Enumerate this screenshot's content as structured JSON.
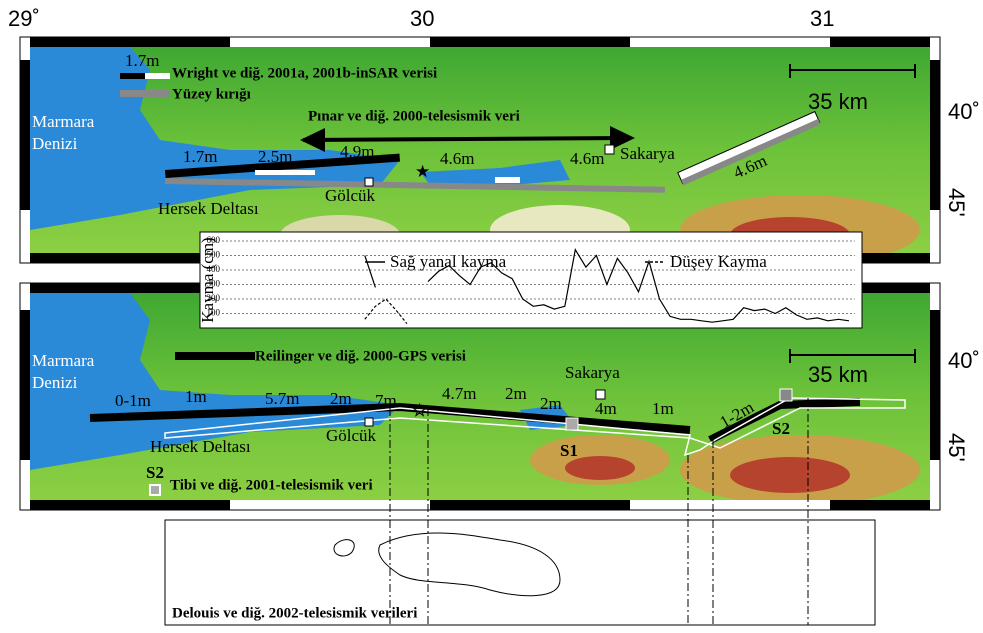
{
  "longitude_labels": [
    "29˚",
    "30",
    "31"
  ],
  "top_map": {
    "latitude_label": [
      "40˚",
      "45'"
    ],
    "legend_slip": "1.7m",
    "legend": [
      "Wright ve diğ. 2001a, 2001b-inSAR verisi",
      "Yüzey kırığı"
    ],
    "arrow_label": "Pınar ve diğ. 2000-telesismik veri",
    "sea": [
      "Marmara",
      "Denizi"
    ],
    "scale": "35 km",
    "places": [
      "Sakarya",
      "Gölcük",
      "Hersek Deltası"
    ],
    "slips": [
      "1.7m",
      "2.5m",
      "4.9m",
      "4.6m",
      "4.6m",
      "4.6m"
    ]
  },
  "slip_profile": {
    "y_axis_label": "Kayma (cm)",
    "ylim": [
      0,
      600
    ],
    "yticks": [
      100,
      200,
      300,
      400,
      500,
      600
    ],
    "series": [
      {
        "name": "Sağ yanal kayma",
        "values": [
          null,
          null,
          null,
          null,
          null,
          null,
          null,
          null,
          null,
          null,
          null,
          null,
          null,
          500,
          280,
          null,
          null,
          null,
          null,
          320,
          390,
          430,
          360,
          300,
          420,
          450,
          380,
          340,
          200,
          150,
          160,
          130,
          150,
          540,
          420,
          500,
          300,
          480,
          380,
          250,
          460,
          200,
          80,
          60,
          60,
          50,
          40,
          50,
          60,
          140,
          120,
          130,
          100,
          140,
          90,
          60,
          70,
          50,
          60,
          50
        ]
      },
      {
        "name": "Düşey Kayma",
        "values": [
          null,
          null,
          null,
          null,
          null,
          null,
          null,
          null,
          null,
          null,
          null,
          null,
          null,
          60,
          150,
          200,
          120,
          30,
          null,
          null,
          null,
          null,
          null,
          null,
          null,
          null,
          null,
          null,
          null,
          null,
          null,
          null,
          null,
          null,
          null,
          null,
          null,
          null,
          null,
          null,
          null,
          null,
          null,
          null,
          null,
          null,
          null,
          null,
          null,
          null,
          null,
          null,
          null,
          null,
          null,
          null,
          null,
          null,
          null,
          null
        ]
      }
    ]
  },
  "bottom_map": {
    "latitude_label": [
      "40˚",
      "45'"
    ],
    "legend": "Reilinger ve diğ. 2000-GPS verisi",
    "sea": [
      "Marmara",
      "Denizi"
    ],
    "scale": "35 km",
    "places": [
      "Sakarya",
      "Gölcük",
      "Hersek Deltası"
    ],
    "slips": [
      "0-1m",
      "1m",
      "5.7m",
      "2m",
      "7m",
      "4.7m",
      "2m",
      "2m",
      "4m",
      "1m",
      "1-2m"
    ],
    "stations": [
      "S1",
      "S2"
    ],
    "tibi_marker": "S2",
    "tibi_legend": "Tibi ve diğ. 2001-telesismik veri"
  },
  "delouis_box": {
    "label": "Delouis ve diğ. 2002-telesismik verileri"
  }
}
